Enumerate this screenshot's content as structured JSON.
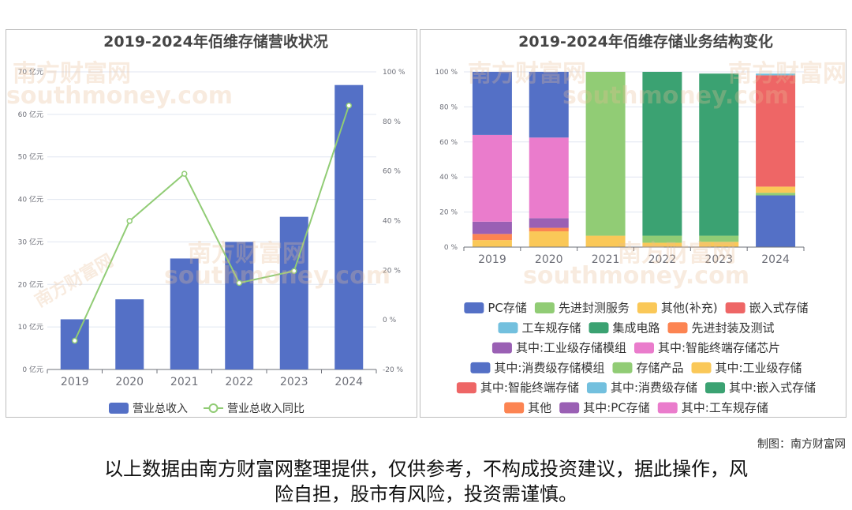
{
  "charts_meta": {
    "credit": "制图：南方财富网",
    "disclaimer_line1": "以上数据由南方财富网整理提供，仅供参考，不构成投资建议，据此操作，风",
    "disclaimer_line2": "险自担，股市有风险，投资需谨慎。",
    "watermark_cn": "南方财富网",
    "watermark_en": "southmoney.com"
  },
  "chart_data": [
    {
      "type": "bar",
      "title": "2019-2024年佰维存储营收状况",
      "categories": [
        "2019",
        "2020",
        "2021",
        "2022",
        "2023",
        "2024"
      ],
      "series": [
        {
          "name": "营业总收入",
          "kind": "bar",
          "axis": "left",
          "color": "#5470c6",
          "values": [
            11.8,
            16.5,
            26.1,
            30.0,
            35.9,
            66.9
          ]
        },
        {
          "name": "营业总收入同比",
          "kind": "line",
          "axis": "right",
          "color": "#91cc75",
          "values": [
            -8.4,
            39.9,
            58.9,
            14.9,
            19.7,
            86.4
          ]
        }
      ],
      "y_left": {
        "ticks": [
          "0 亿元",
          "10 亿元",
          "20 亿元",
          "30 亿元",
          "40 亿元",
          "50 亿元",
          "60 亿元",
          "70 亿元"
        ],
        "ylim": [
          0,
          70
        ]
      },
      "y_right": {
        "ticks": [
          "-20 %",
          "0 %",
          "20 %",
          "40 %",
          "60 %",
          "80 %",
          "100 %"
        ],
        "ylim": [
          -20,
          100
        ]
      },
      "grid": true,
      "legend_position": "bottom"
    },
    {
      "type": "bar",
      "stacked": true,
      "percent": true,
      "title": "2019-2024年佰维存储业务结构变化",
      "categories": [
        "2019",
        "2020",
        "2021",
        "2022",
        "2023",
        "2024"
      ],
      "y_ticks": [
        "0 %",
        "20 %",
        "40 %",
        "60 %",
        "80 %",
        "100 %"
      ],
      "ylim": [
        0,
        100
      ],
      "series": [
        {
          "name": "PC存储",
          "color": "#5470c6",
          "values": [
            0,
            0,
            0,
            0,
            0,
            29.5
          ]
        },
        {
          "name": "先进封测服务",
          "color": "#91cc75",
          "values": [
            0,
            0,
            0,
            0,
            0,
            1.5
          ]
        },
        {
          "name": "其他(补充)",
          "color": "#fac858",
          "values": [
            0,
            0,
            0,
            0,
            0,
            3.5
          ]
        },
        {
          "name": "嵌入式存储",
          "color": "#ee6666",
          "values": [
            0,
            0,
            0,
            0,
            0,
            63.5
          ]
        },
        {
          "name": "工车规存储",
          "color": "#73c0de",
          "values": [
            0,
            0,
            0,
            0,
            0,
            1.0
          ]
        },
        {
          "name": "集成电路",
          "color": "#3ba272",
          "values": [
            0,
            0,
            0,
            93.5,
            92.5,
            0
          ]
        },
        {
          "name": "先进封装及测试",
          "color": "#fc8452",
          "values": [
            0,
            0,
            0,
            0,
            0,
            0
          ]
        },
        {
          "name": "其中:工业级存储模组",
          "color": "#9a60b4",
          "values": [
            0,
            0,
            0,
            0,
            0,
            0
          ]
        },
        {
          "name": "其中:智能终端存储芯片",
          "color": "#ea7ccc",
          "values": [
            0,
            0,
            0,
            0,
            0,
            0
          ]
        },
        {
          "name": "其中:消费级存储模组",
          "color": "#5470c6",
          "values": [
            36,
            37.5,
            0,
            0,
            0,
            0
          ]
        },
        {
          "name": "存储产品",
          "color": "#91cc75",
          "values": [
            0,
            0,
            93.5,
            4.0,
            3.5,
            0
          ]
        },
        {
          "name": "其中:工业级存储",
          "color": "#fac858",
          "values": [
            4,
            9,
            6.5,
            2.5,
            3.0,
            0
          ]
        },
        {
          "name": "其中:智能终端存储",
          "color": "#ee6666",
          "values": [
            0,
            0,
            0,
            0,
            0,
            0
          ]
        },
        {
          "name": "其中:消费级存储",
          "color": "#73c0de",
          "values": [
            0,
            0,
            0,
            0,
            0,
            0
          ]
        },
        {
          "name": "其中:嵌入式存储",
          "color": "#3ba272",
          "values": [
            0,
            0,
            0,
            0,
            0,
            0
          ]
        },
        {
          "name": "其他",
          "color": "#fc8452",
          "values": [
            3.5,
            2,
            0,
            0,
            0,
            0
          ]
        },
        {
          "name": "其中:PC存储",
          "color": "#9a60b4",
          "values": [
            7,
            5.5,
            0,
            0,
            0,
            0
          ]
        },
        {
          "name": "其中:工车规存储",
          "color": "#ea7ccc",
          "values": [
            49.5,
            46,
            0,
            0,
            0,
            0
          ]
        }
      ],
      "stack_order": [
        "其中:工业级存储",
        "其他",
        "其中:PC存储",
        "其中:工车规存储",
        "其中:消费级存储模组",
        "存储产品",
        "集成电路",
        "PC存储",
        "先进封测服务",
        "其他(补充)",
        "嵌入式存储",
        "工车规存储"
      ],
      "legend_position": "bottom"
    }
  ]
}
